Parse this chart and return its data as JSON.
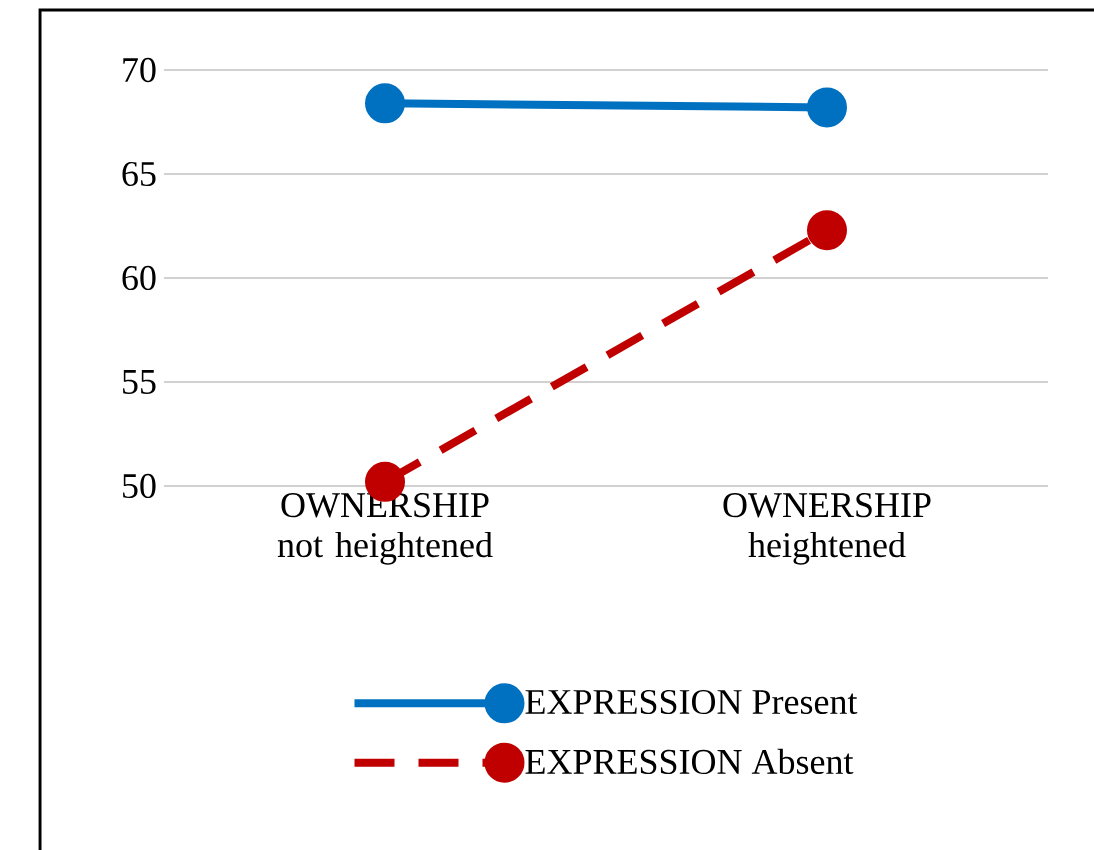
{
  "chart_data": {
    "type": "line",
    "categories": [
      "OWNERSHIP not heightened",
      "OWNERSHIP heightened"
    ],
    "series": [
      {
        "name": "EXPRESSION Present",
        "color": "#0070c0",
        "values": [
          68.4,
          68.2
        ],
        "line_style": "solid"
      },
      {
        "name": "EXPRESSION Absent",
        "color": "#c00000",
        "values": [
          50.2,
          62.3
        ],
        "line_style": "dashed"
      }
    ],
    "ylim": [
      50,
      70
    ],
    "yticks": [
      50,
      55,
      60,
      65,
      70
    ],
    "grid": "y",
    "legend": "bottom",
    "marker": "circle"
  }
}
